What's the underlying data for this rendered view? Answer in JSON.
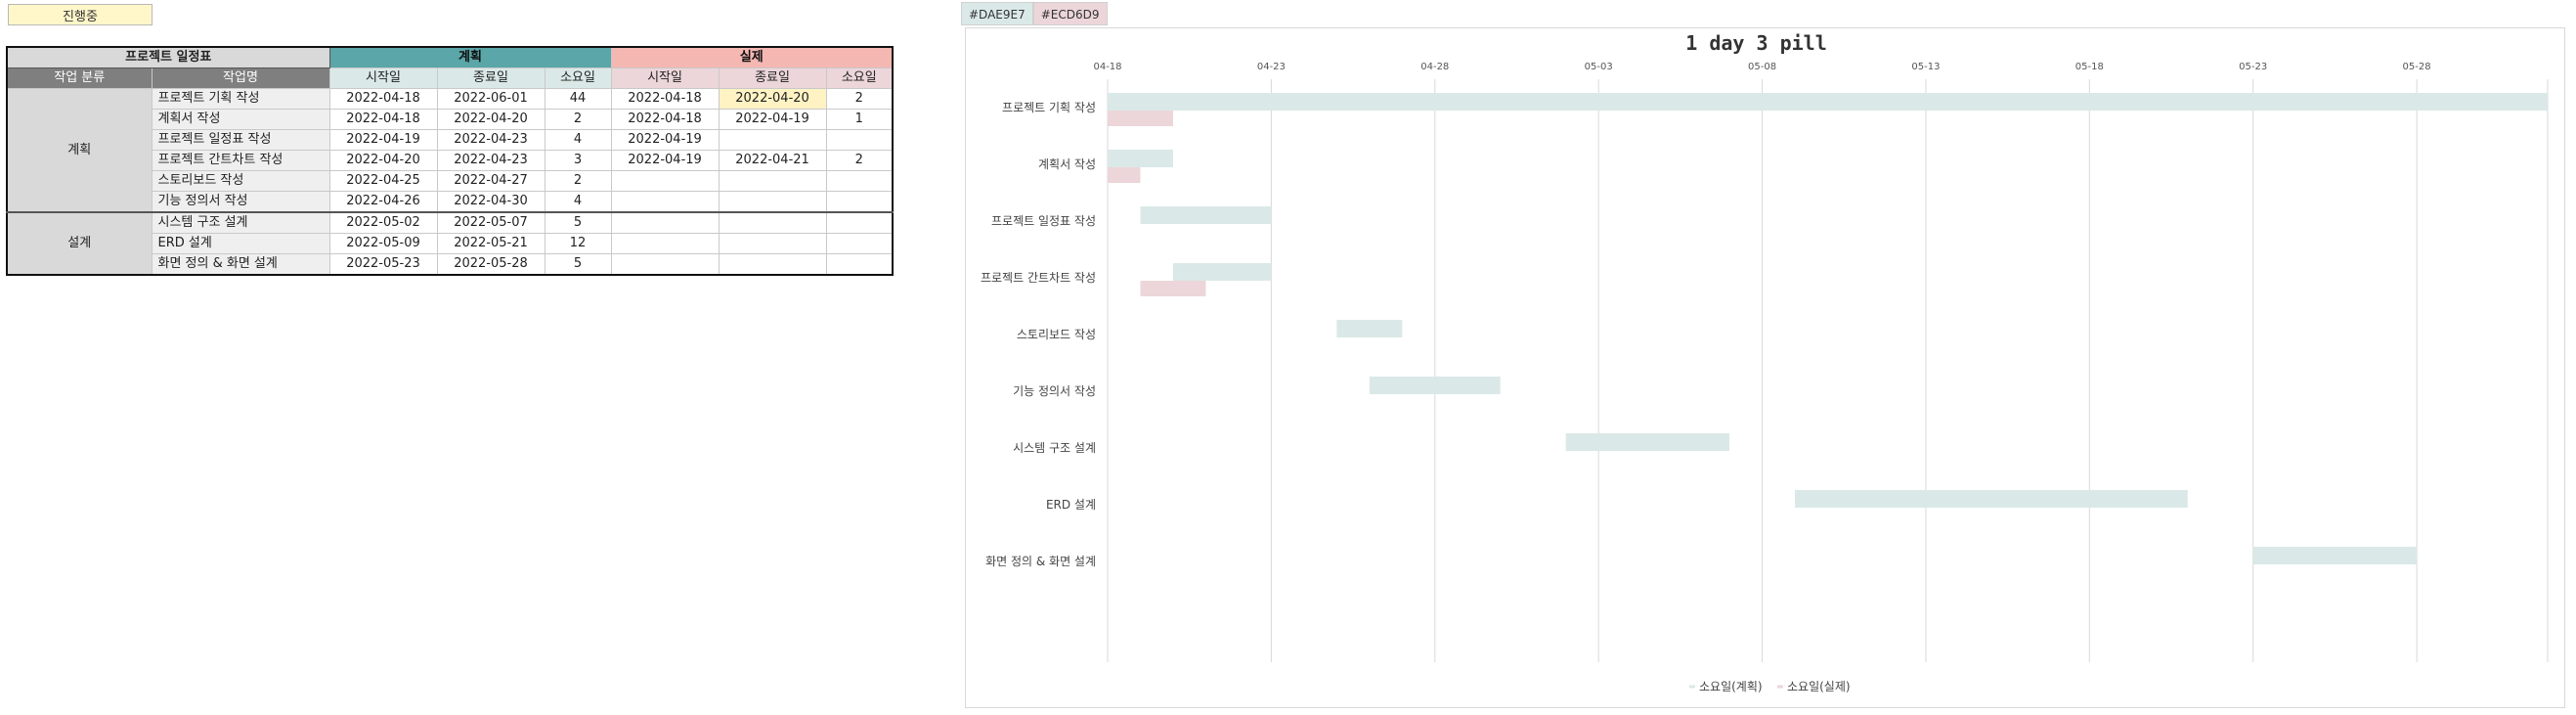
{
  "status_label": "진행중",
  "table": {
    "title": "프로젝트 일정표",
    "plan_header": "계획",
    "actual_header": "실제",
    "col_category": "작업 분류",
    "col_task": "작업명",
    "col_start": "시작일",
    "col_end": "종료일",
    "col_days": "소요일",
    "groups": [
      {
        "category": "계획",
        "rows": [
          {
            "task": "프로젝트 기획 작성",
            "plan_start": "2022-04-18",
            "plan_end": "2022-06-01",
            "plan_days": "44",
            "actual_start": "2022-04-18",
            "actual_end": "2022-04-20",
            "actual_days": "2"
          },
          {
            "task": "계획서 작성",
            "plan_start": "2022-04-18",
            "plan_end": "2022-04-20",
            "plan_days": "2",
            "actual_start": "2022-04-18",
            "actual_end": "2022-04-19",
            "actual_days": "1"
          },
          {
            "task": "프로젝트 일정표 작성",
            "plan_start": "2022-04-19",
            "plan_end": "2022-04-23",
            "plan_days": "4",
            "actual_start": "2022-04-19",
            "actual_end": "",
            "actual_days": ""
          },
          {
            "task": "프로젝트 간트차트 작성",
            "plan_start": "2022-04-20",
            "plan_end": "2022-04-23",
            "plan_days": "3",
            "actual_start": "2022-04-19",
            "actual_end": "2022-04-21",
            "actual_days": "2"
          },
          {
            "task": "스토리보드 작성",
            "plan_start": "2022-04-25",
            "plan_end": "2022-04-27",
            "plan_days": "2",
            "actual_start": "",
            "actual_end": "",
            "actual_days": ""
          },
          {
            "task": "기능 정의서 작성",
            "plan_start": "2022-04-26",
            "plan_end": "2022-04-30",
            "plan_days": "4",
            "actual_start": "",
            "actual_end": "",
            "actual_days": ""
          }
        ]
      },
      {
        "category": "설계",
        "rows": [
          {
            "task": "시스템 구조 설계",
            "plan_start": "2022-05-02",
            "plan_end": "2022-05-07",
            "plan_days": "5",
            "actual_start": "",
            "actual_end": "",
            "actual_days": ""
          },
          {
            "task": "ERD 설계",
            "plan_start": "2022-05-09",
            "plan_end": "2022-05-21",
            "plan_days": "12",
            "actual_start": "",
            "actual_end": "",
            "actual_days": ""
          },
          {
            "task": "화면 정의 & 화면 설계",
            "plan_start": "2022-05-23",
            "plan_end": "2022-05-28",
            "plan_days": "5",
            "actual_start": "",
            "actual_end": "",
            "actual_days": ""
          }
        ]
      }
    ]
  },
  "colors": {
    "plan": "#DAE9E7",
    "actual": "#ECD6D9"
  },
  "chart_data": {
    "type": "bar",
    "orientation": "horizontal-gantt",
    "title": "1 day 3 pill",
    "swatch_labels": [
      "#DAE9E7",
      "#ECD6D9"
    ],
    "x_ticks": [
      "04-18",
      "04-23",
      "04-28",
      "05-03",
      "05-08",
      "05-13",
      "05-18",
      "05-23",
      "05-28"
    ],
    "xlim": [
      "2022-04-18",
      "2022-06-01"
    ],
    "categories": [
      "프로젝트 기획 작성",
      "계획서 작성",
      "프로젝트 일정표 작성",
      "프로젝트 간트차트 작성",
      "스토리보드 작성",
      "기능 정의서 작성",
      "시스템 구조 설계",
      "ERD 설계",
      "화면 정의 & 화면 설계"
    ],
    "series": [
      {
        "name": "소요일(계획)",
        "color": "#DAE9E7",
        "start": [
          "2022-04-18",
          "2022-04-18",
          "2022-04-19",
          "2022-04-20",
          "2022-04-25",
          "2022-04-26",
          "2022-05-02",
          "2022-05-09",
          "2022-05-23"
        ],
        "end": [
          "2022-06-01",
          "2022-04-20",
          "2022-04-23",
          "2022-04-23",
          "2022-04-27",
          "2022-04-30",
          "2022-05-07",
          "2022-05-21",
          "2022-05-28"
        ],
        "values": [
          44,
          2,
          4,
          3,
          2,
          4,
          5,
          12,
          5
        ]
      },
      {
        "name": "소요일(실제)",
        "color": "#ECD6D9",
        "start": [
          "2022-04-18",
          "2022-04-18",
          null,
          "2022-04-19",
          null,
          null,
          null,
          null,
          null
        ],
        "end": [
          "2022-04-20",
          "2022-04-19",
          null,
          "2022-04-21",
          null,
          null,
          null,
          null,
          null
        ],
        "values": [
          2,
          1,
          null,
          2,
          null,
          null,
          null,
          null,
          null
        ]
      }
    ],
    "grid": true,
    "legend": "bottom"
  }
}
